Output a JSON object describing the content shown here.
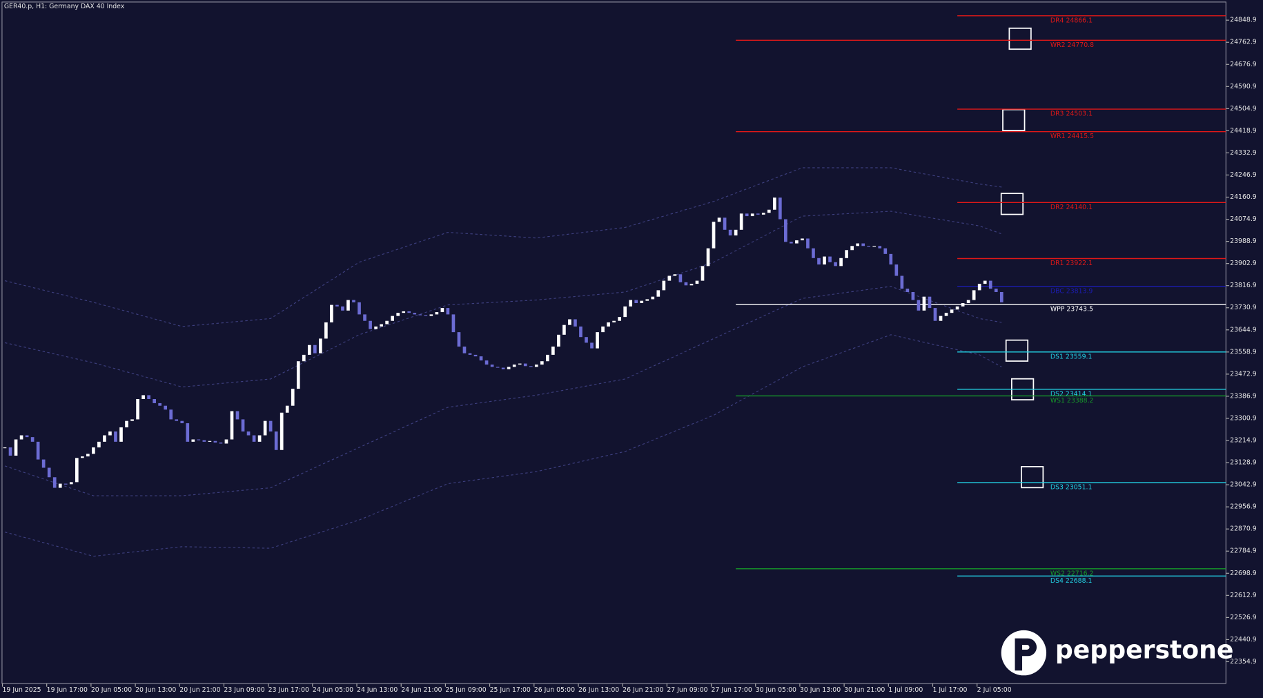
{
  "chart_data": {
    "type": "candlestick",
    "title": "GER40.p, H1:  Germany DAX 40 Index",
    "logo": "pepperstone",
    "categories": [
      "19 Jun 2025",
      null,
      null,
      null,
      null,
      null,
      null,
      null,
      "19 Jun 17:00",
      null,
      null,
      null,
      null,
      null,
      null,
      null,
      "20 Jun 05:00",
      null,
      null,
      null,
      null,
      null,
      null,
      null,
      "20 Jun 13:00",
      null,
      null,
      null,
      null,
      null,
      null,
      null,
      "20 Jun 21:00",
      null,
      null,
      null,
      null,
      null,
      null,
      null,
      "23 Jun 09:00",
      null,
      null,
      null,
      null,
      null,
      null,
      null,
      "23 Jun 17:00",
      null,
      null,
      null,
      null,
      null,
      null,
      null,
      "24 Jun 05:00",
      null,
      null,
      null,
      null,
      null,
      null,
      null,
      "24 Jun 13:00",
      null,
      null,
      null,
      null,
      null,
      null,
      null,
      "24 Jun 21:00",
      null,
      null,
      null,
      null,
      null,
      null,
      null,
      "25 Jun 09:00",
      null,
      null,
      null,
      null,
      null,
      null,
      null,
      "25 Jun 17:00",
      null,
      null,
      null,
      null,
      null,
      null,
      null,
      "26 Jun 05:00",
      null,
      null,
      null,
      null,
      null,
      null,
      null,
      "26 Jun 13:00",
      null,
      null,
      null,
      null,
      null,
      null,
      null,
      "26 Jun 21:00",
      null,
      null,
      null,
      null,
      null,
      null,
      null,
      "27 Jun 09:00",
      null,
      null,
      null,
      null,
      null,
      null,
      null,
      "27 Jun 17:00",
      null,
      null,
      null,
      null,
      null,
      null,
      null,
      "30 Jun 05:00",
      null,
      null,
      null,
      null,
      null,
      null,
      null,
      "30 Jun 13:00",
      null,
      null,
      null,
      null,
      null,
      null,
      null,
      "30 Jun 21:00",
      null,
      null,
      null,
      null,
      null,
      null,
      null,
      "1 Jul 09:00",
      null,
      null,
      null,
      null,
      null,
      null,
      null,
      "1 Jul 17:00",
      null,
      null,
      null,
      null,
      null,
      null,
      null,
      "2 Jul 05:00",
      null,
      null,
      null,
      null
    ],
    "close": [
      23188,
      23156,
      23219,
      23235,
      23228,
      23210,
      23141,
      23109,
      23072,
      23031,
      23047,
      23045,
      23053,
      23147,
      23153,
      23163,
      23188,
      23210,
      23235,
      23250,
      23210,
      23266,
      23291,
      23297,
      23376,
      23391,
      23376,
      23360,
      23350,
      23335,
      23297,
      23291,
      23282,
      23210,
      23219,
      23216,
      23210,
      23213,
      23207,
      23203,
      23219,
      23329,
      23297,
      23250,
      23235,
      23210,
      23235,
      23291,
      23250,
      23178,
      23323,
      23350,
      23416,
      23523,
      23548,
      23586,
      23554,
      23611,
      23674,
      23742,
      23736,
      23720,
      23761,
      23752,
      23705,
      23680,
      23648,
      23658,
      23667,
      23680,
      23699,
      23711,
      23717,
      23711,
      23705,
      23702,
      23699,
      23705,
      23714,
      23730,
      23705,
      23636,
      23580,
      23554,
      23548,
      23542,
      23526,
      23510,
      23501,
      23498,
      23492,
      23501,
      23510,
      23514,
      23504,
      23501,
      23510,
      23523,
      23548,
      23580,
      23626,
      23664,
      23686,
      23658,
      23617,
      23595,
      23573,
      23636,
      23658,
      23674,
      23680,
      23695,
      23736,
      23761,
      23749,
      23758,
      23764,
      23774,
      23799,
      23836,
      23855,
      23861,
      23830,
      23818,
      23824,
      23836,
      23893,
      23962,
      24065,
      24081,
      24034,
      24012,
      24034,
      24097,
      24087,
      24097,
      24093,
      24100,
      24112,
      24159,
      24075,
      23987,
      23981,
      23993,
      24000,
      23962,
      23924,
      23899,
      23930,
      23908,
      23893,
      23924,
      23955,
      23971,
      23981,
      23971,
      23968,
      23971,
      23962,
      23940,
      23899,
      23855,
      23805,
      23792,
      23761,
      23720,
      23774,
      23730,
      23680,
      23699,
      23711,
      23724,
      23736,
      23749,
      23761,
      23799,
      23824,
      23836,
      23805,
      23792,
      23752
    ],
    "up_color": "#ffffff",
    "down_color": "#6c6cd4",
    "ylim": [
      22270.3,
      24917.8
    ],
    "yticks": [
      22354.9,
      22440.9,
      22526.9,
      22612.9,
      22698.9,
      22784.9,
      22870.9,
      22956.9,
      23042.9,
      23128.9,
      23214.9,
      23300.9,
      23386.9,
      23472.9,
      23558.9,
      23644.9,
      23730.9,
      23816.9,
      23902.9,
      23988.9,
      24074.9,
      24160.9,
      24246.9,
      24332.9,
      24418.9,
      24504.9,
      24590.9,
      24676.9,
      24762.9,
      24848.9
    ],
    "bands": [
      {
        "color": "#3d3f7e",
        "index": [
          0,
          16,
          32,
          48,
          64,
          80,
          96,
          112,
          128,
          144,
          160,
          176,
          180
        ],
        "values": [
          23836,
          23752,
          23658,
          23689,
          23908,
          24024,
          24002,
          24043,
          24144,
          24275,
          24275,
          24212,
          24200
        ]
      },
      {
        "color": "#3d3f7e",
        "index": [
          0,
          16,
          32,
          48,
          64,
          80,
          96,
          112,
          128,
          144,
          160,
          176,
          180
        ],
        "values": [
          23595,
          23517,
          23423,
          23454,
          23626,
          23742,
          23761,
          23792,
          23908,
          24087,
          24106,
          24049,
          24018
        ]
      },
      {
        "color": "#3d3f7e",
        "index": [
          0,
          16,
          32,
          48,
          64,
          80,
          96,
          112,
          128,
          144,
          160,
          176,
          180
        ],
        "values": [
          23116,
          23000,
          23000,
          23031,
          23188,
          23344,
          23391,
          23454,
          23611,
          23767,
          23814,
          23689,
          23674
        ]
      },
      {
        "color": "#3d3f7e",
        "index": [
          0,
          16,
          32,
          48,
          64,
          80,
          96,
          112,
          128,
          144,
          160,
          176,
          180
        ],
        "values": [
          22859,
          22765,
          22802,
          22796,
          22906,
          23047,
          23094,
          23172,
          23313,
          23501,
          23626,
          23548,
          23501
        ]
      }
    ],
    "levels": [
      {
        "label": "DR4 24866.1",
        "value": 24866.1,
        "color": "#e01818",
        "from": 172
      },
      {
        "label": "WR2 24770.8",
        "value": 24770.8,
        "color": "#e01818",
        "from": 132
      },
      {
        "label": "DR3 24503.1",
        "value": 24503.1,
        "color": "#e01818",
        "from": 172
      },
      {
        "label": "WR1 24415.5",
        "value": 24415.5,
        "color": "#e01818",
        "from": 132
      },
      {
        "label": "DR2 24140.1",
        "value": 24140.1,
        "color": "#e01818",
        "from": 172
      },
      {
        "label": "DR1 23922.1",
        "value": 23922.1,
        "color": "#e01818",
        "from": 172
      },
      {
        "label": "DBC 23813.9",
        "value": 23813.9,
        "color": "#1c1cb0",
        "from": 172
      },
      {
        "label": "WPP 23743.5",
        "value": 23743.5,
        "color": "#ffffff",
        "from": 132
      },
      {
        "label": "DS1 23559.1",
        "value": 23559.1,
        "color": "#22d3e6",
        "from": 172
      },
      {
        "label": "DS2 23414.1",
        "value": 23414.1,
        "color": "#22d3e6",
        "from": 172
      },
      {
        "label": "WS1 23388.2",
        "value": 23388.2,
        "color": "#169a2a",
        "from": 132
      },
      {
        "label": "DS3 23051.1",
        "value": 23051.1,
        "color": "#22d3e6",
        "from": 172
      },
      {
        "label": "WS2 22716.2",
        "value": 22716.2,
        "color": "#169a2a",
        "from": 132
      },
      {
        "label": "DS4 22688.1",
        "value": 22688.1,
        "color": "#22d3e6",
        "from": 172
      }
    ]
  }
}
